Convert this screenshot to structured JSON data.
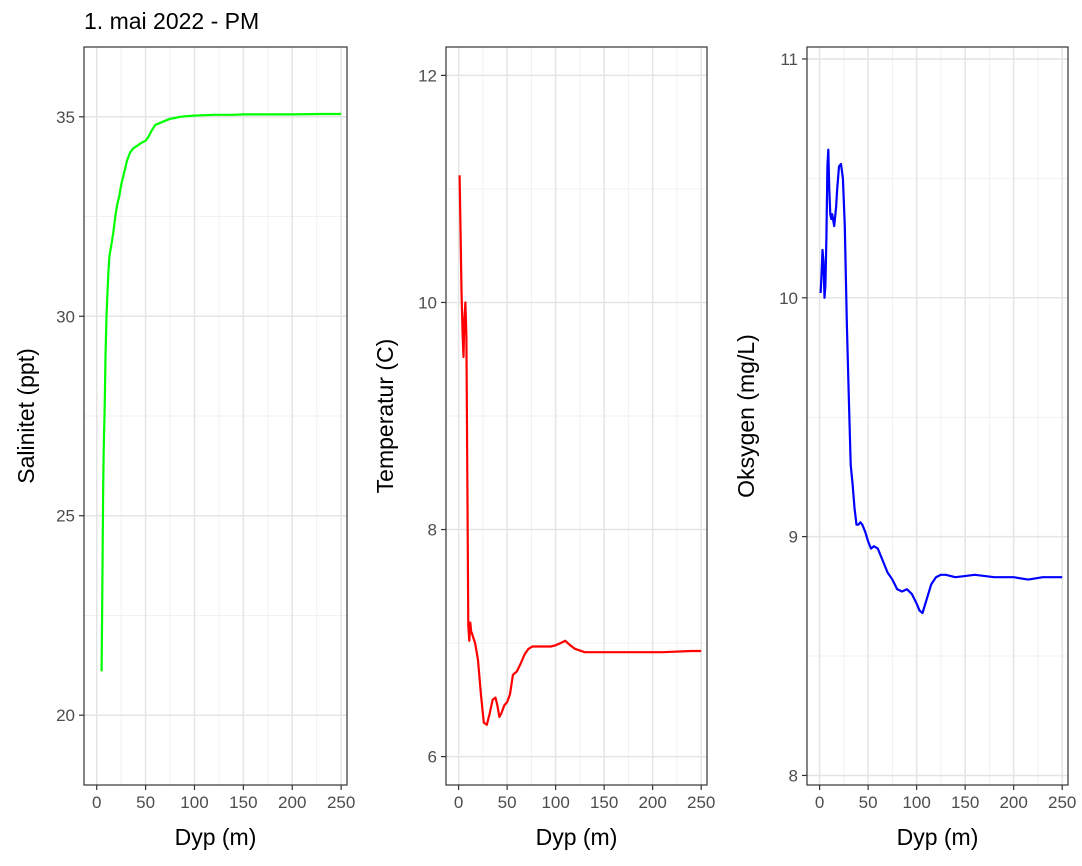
{
  "title": "1. mai 2022 - PM",
  "chart_data": [
    {
      "type": "line",
      "xlabel": "Dyp (m)",
      "ylabel": "Salinitet (ppt)",
      "xlim": [
        -13,
        256
      ],
      "ylim": [
        18.25,
        36.75
      ],
      "xticks": [
        0,
        50,
        100,
        150,
        200,
        250
      ],
      "yticks": [
        20,
        25,
        30,
        35
      ],
      "grid": true,
      "color": "#00ff00",
      "series": [
        {
          "x": [
            5,
            5.5,
            6,
            6.5,
            7,
            7.5,
            8,
            8.5,
            9,
            10,
            11,
            12,
            13,
            15,
            17,
            19,
            21,
            23,
            25,
            28,
            31,
            34,
            37,
            40,
            43,
            46,
            50,
            53,
            56,
            60,
            65,
            70,
            75,
            80,
            85,
            90,
            95,
            100,
            110,
            120,
            130,
            140,
            150,
            170,
            200,
            230,
            250
          ],
          "y": [
            21.1,
            22.5,
            24.0,
            25.5,
            26.5,
            27.0,
            27.5,
            28.2,
            29.0,
            30.0,
            30.6,
            31.1,
            31.5,
            31.8,
            32.1,
            32.5,
            32.8,
            33.0,
            33.3,
            33.6,
            33.9,
            34.1,
            34.2,
            34.25,
            34.3,
            34.35,
            34.4,
            34.5,
            34.65,
            34.8,
            34.85,
            34.9,
            34.95,
            34.97,
            35.0,
            35.01,
            35.02,
            35.03,
            35.04,
            35.05,
            35.05,
            35.05,
            35.06,
            35.06,
            35.06,
            35.07,
            35.07
          ]
        }
      ]
    },
    {
      "type": "line",
      "xlabel": "Dyp (m)",
      "ylabel": "Temperatur (C)",
      "xlim": [
        -13,
        256
      ],
      "ylim": [
        5.75,
        12.25
      ],
      "xticks": [
        0,
        50,
        100,
        150,
        200,
        250
      ],
      "yticks": [
        6,
        8,
        10,
        12
      ],
      "grid": true,
      "color": "#ff0000",
      "series": [
        {
          "x": [
            1,
            2,
            3,
            4,
            5,
            6,
            7,
            8,
            9,
            10,
            11,
            12,
            13,
            14,
            15,
            17,
            20,
            23,
            26,
            29,
            32,
            35,
            38,
            40,
            42,
            44,
            47,
            50,
            53,
            56,
            60,
            64,
            68,
            72,
            76,
            80,
            85,
            90,
            95,
            100,
            105,
            110,
            115,
            120,
            130,
            150,
            180,
            210,
            240,
            250
          ],
          "y": [
            11.12,
            10.6,
            10.1,
            9.75,
            9.52,
            9.85,
            10.0,
            9.7,
            8.5,
            7.15,
            7.02,
            7.18,
            7.1,
            7.08,
            7.05,
            7.0,
            6.85,
            6.55,
            6.3,
            6.28,
            6.38,
            6.5,
            6.52,
            6.45,
            6.35,
            6.38,
            6.45,
            6.48,
            6.55,
            6.72,
            6.75,
            6.82,
            6.9,
            6.95,
            6.97,
            6.97,
            6.97,
            6.97,
            6.97,
            6.98,
            7.0,
            7.02,
            6.98,
            6.95,
            6.92,
            6.92,
            6.92,
            6.92,
            6.93,
            6.93
          ]
        }
      ]
    },
    {
      "type": "line",
      "xlabel": "Dyp (m)",
      "ylabel": "Oksygen (mg/L)",
      "xlim": [
        -13,
        256
      ],
      "ylim": [
        7.96,
        11.05
      ],
      "xticks": [
        0,
        50,
        100,
        150,
        200,
        250
      ],
      "yticks": [
        8,
        9,
        10,
        11
      ],
      "grid": true,
      "color": "#0000ff",
      "series": [
        {
          "x": [
            1,
            2,
            3,
            4,
            5,
            6,
            7,
            8,
            9,
            10,
            11,
            12,
            13,
            15,
            17,
            18,
            20,
            22,
            24,
            26,
            28,
            30,
            32,
            34,
            36,
            38,
            40,
            42,
            44,
            47,
            50,
            53,
            56,
            60,
            65,
            70,
            75,
            80,
            85,
            90,
            95,
            100,
            103,
            106,
            109,
            112,
            115,
            120,
            125,
            130,
            140,
            160,
            180,
            200,
            215,
            230,
            240,
            250
          ],
          "y": [
            10.02,
            10.1,
            10.2,
            10.15,
            10.0,
            10.05,
            10.25,
            10.55,
            10.62,
            10.45,
            10.35,
            10.33,
            10.35,
            10.3,
            10.38,
            10.45,
            10.55,
            10.56,
            10.5,
            10.3,
            9.9,
            9.6,
            9.3,
            9.22,
            9.12,
            9.05,
            9.05,
            9.06,
            9.05,
            9.02,
            8.98,
            8.95,
            8.96,
            8.95,
            8.9,
            8.85,
            8.82,
            8.78,
            8.77,
            8.78,
            8.76,
            8.72,
            8.69,
            8.68,
            8.72,
            8.76,
            8.8,
            8.83,
            8.84,
            8.84,
            8.83,
            8.84,
            8.83,
            8.83,
            8.82,
            8.83,
            8.83,
            8.83
          ]
        }
      ]
    }
  ]
}
